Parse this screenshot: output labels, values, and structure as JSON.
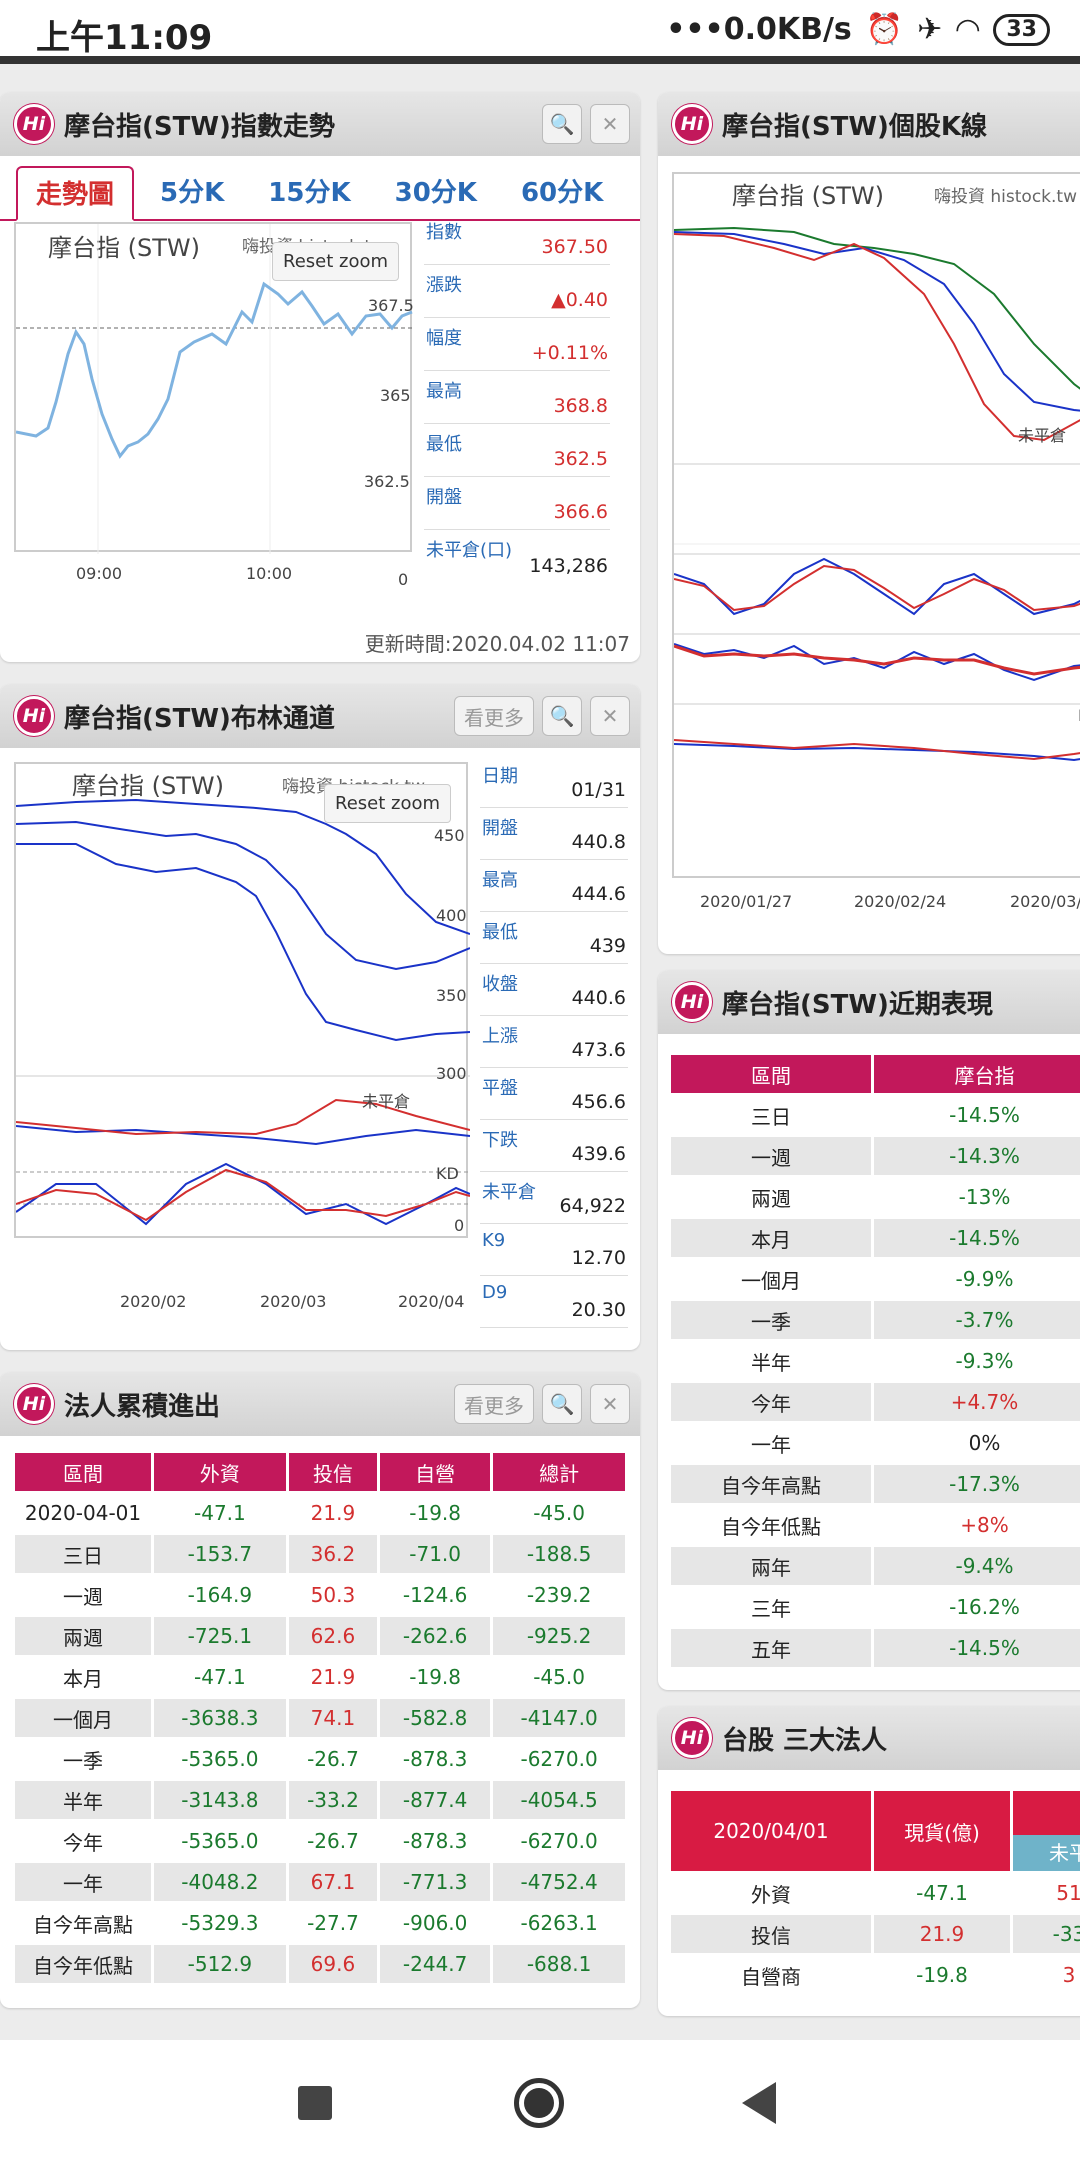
{
  "status_bar": {
    "time": "上午11:09",
    "net": "0.0KB/s",
    "battery": "33"
  },
  "trend": {
    "title": "摩台指(STW)指數走勢",
    "tabs": [
      "走勢圖",
      "5分K",
      "15分K",
      "30分K",
      "60分K"
    ],
    "chart_title": "摩台指 (STW)",
    "watermark": "嗨投資 histock.tw",
    "reset": "Reset zoom",
    "y_ticks": [
      "367.5",
      "365",
      "362.5",
      "0"
    ],
    "x_ticks": [
      "09:00",
      "10:00"
    ],
    "stats": [
      {
        "k": "指數",
        "v": "367.50",
        "c": "red"
      },
      {
        "k": "漲跌",
        "v": "▲0.40",
        "c": "red"
      },
      {
        "k": "幅度",
        "v": "+0.11%",
        "c": "red"
      },
      {
        "k": "最高",
        "v": "368.8",
        "c": "red"
      },
      {
        "k": "最低",
        "v": "362.5",
        "c": "red"
      },
      {
        "k": "開盤",
        "v": "366.6",
        "c": "red"
      },
      {
        "k": "未平倉(口)",
        "v": "143,286",
        "c": "blk"
      }
    ],
    "updated": "更新時間:2020.04.02 11:07"
  },
  "kline": {
    "title": "摩台指(STW)個股K線",
    "chart_title": "摩台指 (STW)",
    "watermark": "嗨投資 histock.tw",
    "oi_label": "未平倉",
    "ma_label": "MA",
    "x_ticks": [
      "2020/01/27",
      "2020/02/24",
      "2020/03/"
    ]
  },
  "bollinger": {
    "title": "摩台指(STW)布林通道",
    "more": "看更多",
    "chart_title": "摩台指 (STW)",
    "watermark": "嗨投資 histock.tw",
    "reset": "Reset zoom",
    "y_ticks": [
      "450",
      "400",
      "350",
      "300"
    ],
    "oi_label": "未平倉",
    "kd_label": "KD",
    "zero": "0",
    "x_ticks": [
      "2020/02",
      "2020/03",
      "2020/04"
    ],
    "stats": [
      {
        "k": "日期",
        "v": "01/31"
      },
      {
        "k": "開盤",
        "v": "440.8"
      },
      {
        "k": "最高",
        "v": "444.6"
      },
      {
        "k": "最低",
        "v": "439"
      },
      {
        "k": "收盤",
        "v": "440.6"
      },
      {
        "k": "上漲",
        "v": "473.6"
      },
      {
        "k": "平盤",
        "v": "456.6"
      },
      {
        "k": "下跌",
        "v": "439.6"
      },
      {
        "k": "未平倉",
        "v": "64,922"
      },
      {
        "k": "K9",
        "v": "12.70"
      },
      {
        "k": "D9",
        "v": "20.30"
      }
    ]
  },
  "recent": {
    "title": "摩台指(STW)近期表現",
    "headers": [
      "區間",
      "摩台指"
    ],
    "rows": [
      [
        "三日",
        "-14.5%",
        "green"
      ],
      [
        "一週",
        "-14.3%",
        "green"
      ],
      [
        "兩週",
        "-13%",
        "green"
      ],
      [
        "本月",
        "-14.5%",
        "green"
      ],
      [
        "一個月",
        "-9.9%",
        "green"
      ],
      [
        "一季",
        "-3.7%",
        "green"
      ],
      [
        "半年",
        "-9.3%",
        "green"
      ],
      [
        "今年",
        "+4.7%",
        "red"
      ],
      [
        "一年",
        "0%",
        "blk"
      ],
      [
        "自今年高點",
        "-17.3%",
        "green"
      ],
      [
        "自今年低點",
        "+8%",
        "red"
      ],
      [
        "兩年",
        "-9.4%",
        "green"
      ],
      [
        "三年",
        "-16.2%",
        "green"
      ],
      [
        "五年",
        "-14.5%",
        "green"
      ]
    ]
  },
  "inst_cum": {
    "title": "法人累積進出",
    "more": "看更多",
    "headers": [
      "區間",
      "外資",
      "投信",
      "自營",
      "總計"
    ],
    "rows": [
      [
        "2020-04-01",
        "-47.1",
        "21.9",
        "-19.8",
        "-45.0"
      ],
      [
        "三日",
        "-153.7",
        "36.2",
        "-71.0",
        "-188.5"
      ],
      [
        "一週",
        "-164.9",
        "50.3",
        "-124.6",
        "-239.2"
      ],
      [
        "兩週",
        "-725.1",
        "62.6",
        "-262.6",
        "-925.2"
      ],
      [
        "本月",
        "-47.1",
        "21.9",
        "-19.8",
        "-45.0"
      ],
      [
        "一個月",
        "-3638.3",
        "74.1",
        "-582.8",
        "-4147.0"
      ],
      [
        "一季",
        "-5365.0",
        "-26.7",
        "-878.3",
        "-6270.0"
      ],
      [
        "半年",
        "-3143.8",
        "-33.2",
        "-877.4",
        "-4054.5"
      ],
      [
        "今年",
        "-5365.0",
        "-26.7",
        "-878.3",
        "-6270.0"
      ],
      [
        "一年",
        "-4048.2",
        "67.1",
        "-771.3",
        "-4752.4"
      ],
      [
        "自今年高點",
        "-5329.3",
        "-27.7",
        "-906.0",
        "-6263.1"
      ],
      [
        "自今年低點",
        "-512.9",
        "69.6",
        "-244.7",
        "-688.1"
      ]
    ]
  },
  "big3": {
    "title": "台股 三大法人",
    "date": "2020/04/01",
    "spot": "現貨(億)",
    "oi": "未平",
    "rows": [
      [
        "外資",
        "-47.1",
        "51"
      ],
      [
        "投信",
        "21.9",
        "-33"
      ],
      [
        "自營商",
        "-19.8",
        "3"
      ]
    ]
  },
  "colors": {
    "accent": "#c2185b",
    "up": "#d32f2f",
    "down": "#1b7a2e",
    "link": "#2a6ab5"
  }
}
